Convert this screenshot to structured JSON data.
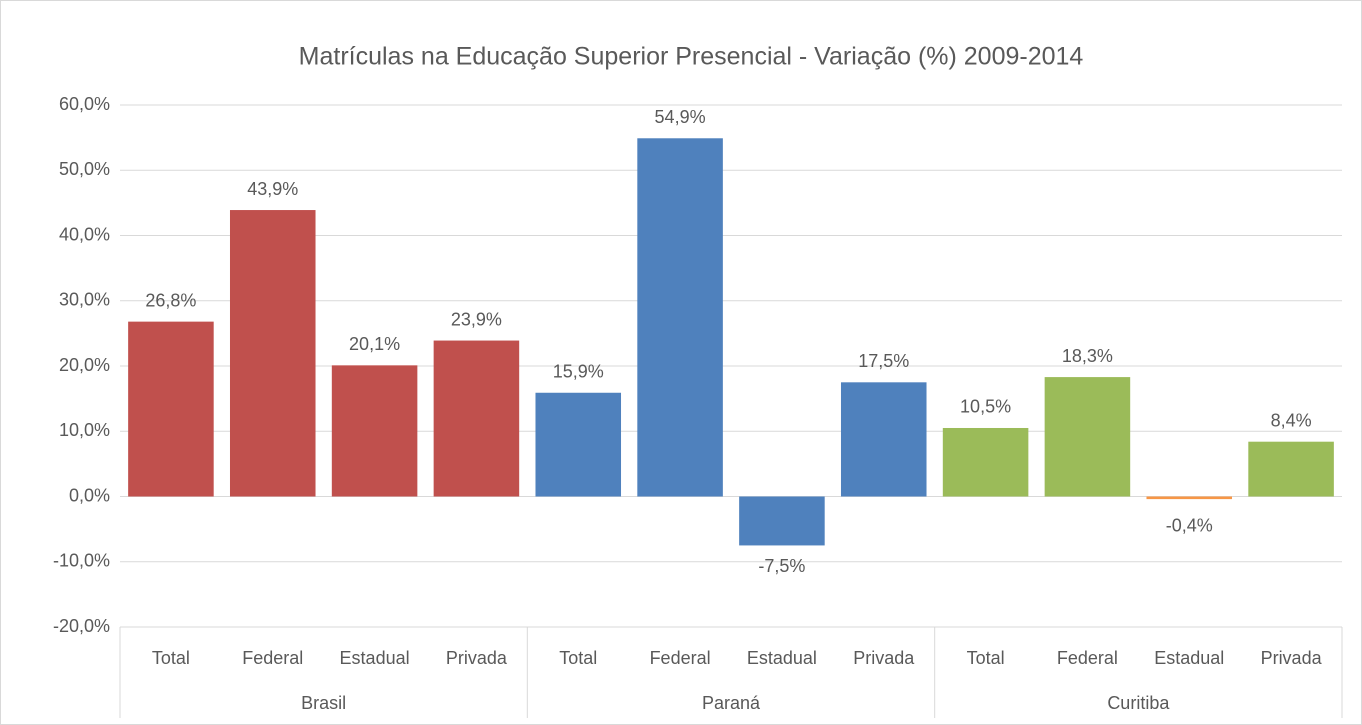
{
  "chart_data": {
    "type": "bar",
    "title": "Matrículas na Educação Superior Presencial - Variação (%) 2009-2014",
    "groups": [
      {
        "name": "Brasil",
        "categories": [
          "Total",
          "Federal",
          "Estadual",
          "Privada"
        ],
        "values": [
          26.8,
          43.9,
          20.1,
          23.9
        ],
        "value_labels": [
          "26,8%",
          "43,9%",
          "20,1%",
          "23,9%"
        ],
        "colors": [
          "#c0504d",
          "#c0504d",
          "#c0504d",
          "#c0504d"
        ]
      },
      {
        "name": "Paraná",
        "categories": [
          "Total",
          "Federal",
          "Estadual",
          "Privada"
        ],
        "values": [
          15.9,
          54.9,
          -7.5,
          17.5
        ],
        "value_labels": [
          "15,9%",
          "54,9%",
          "-7,5%",
          "17,5%"
        ],
        "colors": [
          "#4f81bd",
          "#4f81bd",
          "#4f81bd",
          "#4f81bd"
        ]
      },
      {
        "name": "Curitiba",
        "categories": [
          "Total",
          "Federal",
          "Estadual",
          "Privada"
        ],
        "values": [
          10.5,
          18.3,
          -0.4,
          8.4
        ],
        "value_labels": [
          "10,5%",
          "18,3%",
          "-0,4%",
          "8,4%"
        ],
        "colors": [
          "#9bbb59",
          "#9bbb59",
          "#f79646",
          "#9bbb59"
        ]
      }
    ],
    "ylim": [
      -20,
      60
    ],
    "yticks": [
      {
        "value": -20,
        "label": "-20,0%"
      },
      {
        "value": -10,
        "label": "-10,0%"
      },
      {
        "value": 0,
        "label": "0,0%"
      },
      {
        "value": 10,
        "label": "10,0%"
      },
      {
        "value": 20,
        "label": "20,0%"
      },
      {
        "value": 30,
        "label": "30,0%"
      },
      {
        "value": 40,
        "label": "40,0%"
      },
      {
        "value": 50,
        "label": "50,0%"
      },
      {
        "value": 60,
        "label": "60,0%"
      }
    ],
    "grid": true
  }
}
